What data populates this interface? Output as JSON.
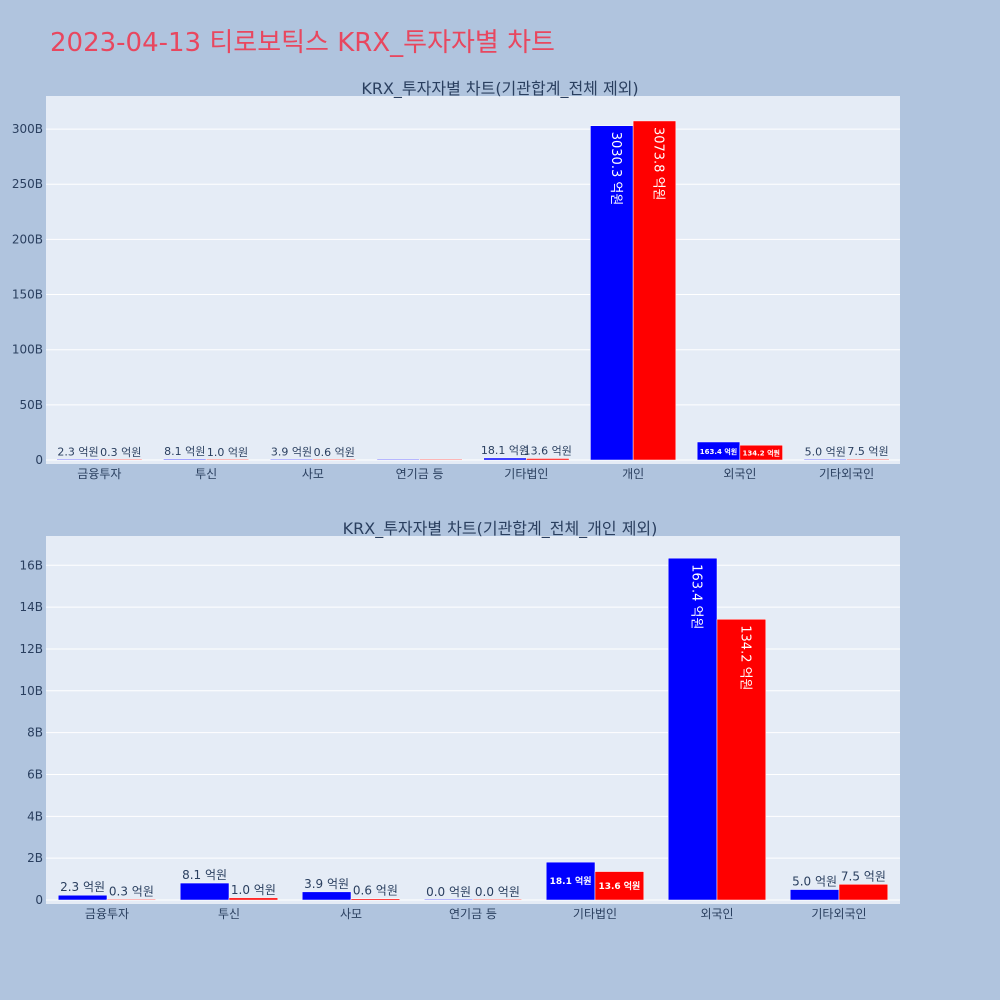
{
  "page": {
    "title": "2023-04-13 티로보틱스 KRX_투자자별 차트"
  },
  "colors": {
    "background": "#b0c4de",
    "plot_bg": "#e5ecf6",
    "title": "#e8475f",
    "series_blue": "#0000ff",
    "series_red": "#ff0000",
    "axis_text": "#2a3f5f"
  },
  "chart_data": [
    {
      "type": "bar",
      "title": "KRX_투자자별 차트(기관합계_전체 제외)",
      "categories": [
        "금융투자",
        "투신",
        "사모",
        "연기금 등",
        "기타법인",
        "개인",
        "외국인",
        "기타외국인"
      ],
      "series": [
        {
          "color": "#0000ff",
          "values": [
            0.23,
            0.81,
            0.39,
            0,
            1.81,
            303.03,
            16.34,
            0.5
          ],
          "labels": [
            "2.3 억원",
            "8.1 억원",
            "3.9 억원",
            "",
            "18.1 억원",
            "3030.3 억원",
            "163.4 억원",
            "5.0 억원"
          ]
        },
        {
          "color": "#ff0000",
          "values": [
            0.03,
            0.1,
            0.06,
            0,
            1.36,
            307.38,
            13.42,
            0.75
          ],
          "labels": [
            "0.3 억원",
            "1.0 억원",
            "0.6 억원",
            "",
            "13.6 억원",
            "3073.8 억원",
            "134.2 억원",
            "7.5 억원"
          ]
        }
      ],
      "ylim": [
        0,
        330
      ],
      "yticks": [
        0,
        50,
        100,
        150,
        200,
        250,
        300
      ],
      "ytick_labels": [
        "0",
        "50B",
        "100B",
        "150B",
        "200B",
        "250B",
        "300B"
      ],
      "grid": true
    },
    {
      "type": "bar",
      "title": "KRX_투자자별 차트(기관합계_전체_개인 제외)",
      "categories": [
        "금융투자",
        "투신",
        "사모",
        "연기금 등",
        "기타법인",
        "외국인",
        "기타외국인"
      ],
      "series": [
        {
          "color": "#0000ff",
          "values": [
            0.23,
            0.81,
            0.39,
            0,
            1.81,
            16.34,
            0.5
          ],
          "labels": [
            "2.3 억원",
            "8.1 억원",
            "3.9 억원",
            "0.0 억원",
            "18.1 억원",
            "163.4 억원",
            "5.0 억원"
          ]
        },
        {
          "color": "#ff0000",
          "values": [
            0.03,
            0.1,
            0.06,
            0,
            1.36,
            13.42,
            0.75
          ],
          "labels": [
            "0.3 억원",
            "1.0 억원",
            "0.6 억원",
            "0.0 억원",
            "13.6 억원",
            "134.2 억원",
            "7.5 억원"
          ]
        }
      ],
      "ylim": [
        0,
        17.4
      ],
      "yticks": [
        0,
        2,
        4,
        6,
        8,
        10,
        12,
        14,
        16
      ],
      "ytick_labels": [
        "0",
        "2B",
        "4B",
        "6B",
        "8B",
        "10B",
        "12B",
        "14B",
        "16B"
      ],
      "grid": true
    }
  ]
}
